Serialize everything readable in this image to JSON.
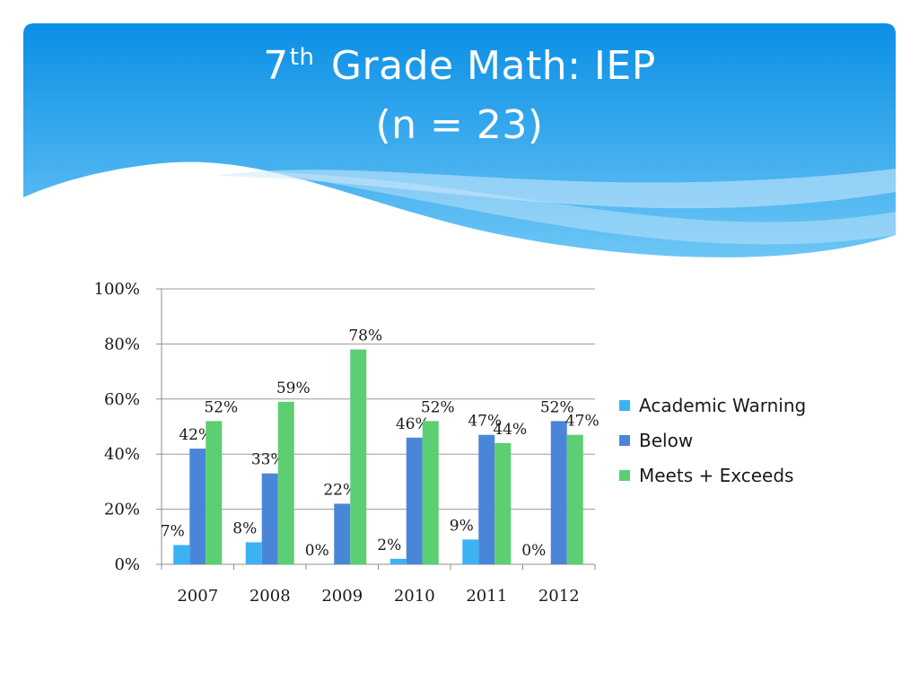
{
  "slide": {
    "title_main": "7",
    "title_sup": "th",
    "title_rest": " Grade Math: IEP",
    "subtitle": "(n = 23)"
  },
  "colors": {
    "banner_top": "#0a8fe6",
    "banner_bottom": "#6cc6f5",
    "wave_light": "#cfe9fb",
    "grid": "#9a9a9a",
    "axis": "#8c8c8c"
  },
  "chart_data": {
    "type": "bar",
    "categories": [
      "2007",
      "2008",
      "2009",
      "2010",
      "2011",
      "2012"
    ],
    "series": [
      {
        "name": "Academic Warning",
        "color": "#3db2f3",
        "values": [
          7,
          8,
          0,
          2,
          9,
          0
        ]
      },
      {
        "name": "Below",
        "color": "#4a86d8",
        "values": [
          42,
          33,
          22,
          46,
          47,
          52
        ]
      },
      {
        "name": "Meets + Exceeds",
        "color": "#5ccf72",
        "values": [
          52,
          59,
          78,
          52,
          44,
          47
        ]
      }
    ],
    "ylim": [
      0,
      100
    ],
    "yticks": [
      "0%",
      "20%",
      "40%",
      "60%",
      "80%",
      "100%"
    ],
    "value_suffix": "%",
    "grid": true,
    "legend_position": "right"
  }
}
